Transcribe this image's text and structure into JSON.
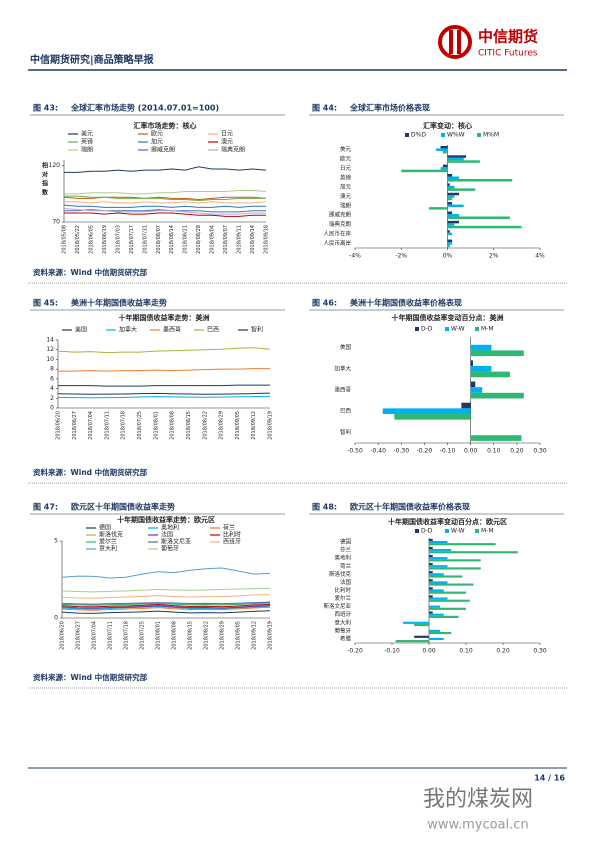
{
  "header": {
    "title": "中信期货研究|商品策略早报",
    "logo_cn": "中信期货",
    "logo_en": "CITIC Futures"
  },
  "sources": [
    "资料来源：Wind  中信期货研究部",
    "资料来源：Wind  中信期货研究部",
    "资料来源：Wind  中信期货研究部"
  ],
  "chart_data": [
    {
      "type": "line",
      "figure": "图 43:",
      "caption": "全球汇率市场走势 (2014.07.01=100)",
      "title": "汇率市场走势：核心",
      "ylabel": "相对指数",
      "categories": [
        "2018/05/08",
        "2018/05/22",
        "2018/06/05",
        "2018/06/19",
        "2018/07/03",
        "2018/07/17",
        "2018/07/31",
        "2018/08/07",
        "2018/08/14",
        "2018/08/21",
        "2018/08/28",
        "2018/09/04",
        "2018/09/07",
        "2018/09/11",
        "2018/09/14",
        "2018/09/18"
      ],
      "ylim": [
        70,
        125
      ],
      "yticks": [
        70,
        120
      ],
      "series": [
        {
          "name": "美元",
          "color": "#1f3864",
          "values": [
            114,
            114,
            115,
            115,
            116,
            115,
            116,
            116,
            117,
            116,
            119,
            117,
            117,
            116,
            117,
            116
          ]
        },
        {
          "name": "欧元",
          "color": "#c55a11",
          "values": [
            92,
            91,
            91,
            92,
            92,
            92,
            91,
            92,
            91,
            91,
            90,
            91,
            92,
            92,
            92,
            91
          ]
        },
        {
          "name": "日元",
          "color": "#f4b183",
          "values": [
            88,
            88,
            87,
            88,
            87,
            87,
            88,
            87,
            87,
            88,
            87,
            88,
            87,
            87,
            87,
            88
          ]
        },
        {
          "name": "英镑",
          "color": "#70ad47",
          "values": [
            93,
            93,
            92,
            92,
            91,
            91,
            91,
            91,
            90,
            90,
            89,
            90,
            90,
            91,
            91,
            91
          ]
        },
        {
          "name": "加元",
          "color": "#2e75b6",
          "values": [
            85,
            84,
            84,
            83,
            83,
            83,
            84,
            84,
            83,
            84,
            83,
            83,
            84,
            83,
            84,
            84
          ]
        },
        {
          "name": "澳元",
          "color": "#c00000",
          "values": [
            78,
            78,
            78,
            77,
            78,
            77,
            77,
            78,
            78,
            77,
            76,
            76,
            75,
            75,
            76,
            76
          ]
        },
        {
          "name": "瑞朗",
          "color": "#a9d18e",
          "values": [
            95,
            95,
            96,
            96,
            96,
            95,
            95,
            96,
            96,
            97,
            97,
            97,
            97,
            98,
            98,
            97
          ]
        },
        {
          "name": "挪威克朗",
          "color": "#4472c4",
          "values": [
            80,
            80,
            81,
            80,
            80,
            80,
            80,
            81,
            80,
            80,
            80,
            79,
            79,
            79,
            80,
            80
          ]
        },
        {
          "name": "瑞典克朗",
          "color": "#b4a7d6",
          "values": [
            82,
            81,
            80,
            80,
            79,
            79,
            79,
            80,
            80,
            79,
            78,
            77,
            77,
            77,
            78,
            78
          ]
        }
      ]
    },
    {
      "type": "hbar",
      "figure": "图 44:",
      "caption": "全球汇率市场价格表现",
      "title": "汇率变动：核心",
      "categories": [
        "美元",
        "欧元",
        "日元",
        "英镑",
        "加元",
        "澳元",
        "瑞朗",
        "挪威克朗",
        "瑞典克朗",
        "人民币在岸",
        "人民币离岸"
      ],
      "xlim": [
        -4,
        4
      ],
      "xticks": [
        {
          "value": -4,
          "label": "-4%"
        },
        {
          "value": -2,
          "label": "-2%"
        },
        {
          "value": 0,
          "label": "0%"
        },
        {
          "value": 2,
          "label": "2%"
        },
        {
          "value": 4,
          "label": "4%"
        }
      ],
      "series": [
        {
          "name": "D%D",
          "color": "#1f3864",
          "values": [
            -0.3,
            0.8,
            -0.2,
            0.2,
            0.1,
            0.5,
            0.2,
            0.2,
            0.5,
            0.1,
            0.2
          ]
        },
        {
          "name": "W%W",
          "color": "#00b0f0",
          "values": [
            -0.5,
            0.7,
            -0.3,
            0.5,
            0.3,
            0.3,
            0.7,
            0.5,
            0.3,
            0.2,
            0.2
          ]
        },
        {
          "name": "M%M",
          "color": "#2eb872",
          "values": [
            -0.2,
            1.4,
            -2.0,
            2.8,
            1.2,
            0.2,
            -0.8,
            2.7,
            3.2,
            0.0,
            0.1
          ]
        }
      ]
    },
    {
      "type": "line",
      "figure": "图 45:",
      "caption": "美洲十年期国债收益率走势",
      "title": "十年期国债收益率走势：美洲",
      "categories": [
        "2018/06/20",
        "2018/06/27",
        "2018/07/04",
        "2018/07/11",
        "2018/07/18",
        "2018/07/25",
        "2018/08/01",
        "2018/08/08",
        "2018/08/15",
        "2018/08/22",
        "2018/08/29",
        "2018/09/05",
        "2018/09/12",
        "2018/09/19"
      ],
      "ylim": [
        0,
        14
      ],
      "yticks": [
        0,
        2,
        4,
        6,
        8,
        10,
        12,
        14
      ],
      "series": [
        {
          "name": "美国",
          "color": "#1f3864",
          "values": [
            2.93,
            2.87,
            2.83,
            2.85,
            2.87,
            2.96,
            3.0,
            2.93,
            2.87,
            2.82,
            2.86,
            2.9,
            2.97,
            3.06
          ]
        },
        {
          "name": "加拿大",
          "color": "#00b0f0",
          "values": [
            2.18,
            2.13,
            2.12,
            2.14,
            2.17,
            2.26,
            2.34,
            2.29,
            2.25,
            2.22,
            2.24,
            2.29,
            2.34,
            2.42
          ]
        },
        {
          "name": "墨西哥",
          "color": "#ed7d31",
          "values": [
            7.6,
            7.6,
            7.7,
            7.6,
            7.7,
            7.7,
            7.8,
            7.7,
            7.8,
            7.9,
            8.0,
            8.0,
            8.1,
            8.1
          ]
        },
        {
          "name": "巴西",
          "color": "#a9b53f",
          "values": [
            11.7,
            11.5,
            11.6,
            11.4,
            11.5,
            11.5,
            11.7,
            11.8,
            11.9,
            12.0,
            12.1,
            12.3,
            12.4,
            12.1
          ]
        },
        {
          "name": "智利",
          "color": "#203864",
          "values": [
            4.6,
            4.6,
            4.6,
            4.5,
            4.5,
            4.5,
            4.6,
            4.6,
            4.6,
            4.6,
            4.6,
            4.7,
            4.7,
            4.7
          ]
        }
      ]
    },
    {
      "type": "hbar",
      "figure": "图 46:",
      "caption": "美洲十年期国债收益率价格表现",
      "title": "十年期国债收益率变动百分点：美洲",
      "categories": [
        "美国",
        "加拿大",
        "墨西哥",
        "巴西",
        "智利"
      ],
      "xlim": [
        -0.5,
        0.3
      ],
      "xticks": [
        {
          "value": -0.5,
          "label": "-0.50"
        },
        {
          "value": -0.4,
          "label": "-0.40"
        },
        {
          "value": -0.3,
          "label": "-0.30"
        },
        {
          "value": -0.2,
          "label": "-0.20"
        },
        {
          "value": -0.1,
          "label": "-0.10"
        },
        {
          "value": 0,
          "label": "0.00"
        },
        {
          "value": 0.1,
          "label": "0.10"
        },
        {
          "value": 0.2,
          "label": "0.20"
        },
        {
          "value": 0.3,
          "label": "0.30"
        }
      ],
      "series": [
        {
          "name": "D-D",
          "color": "#1f3864",
          "values": [
            0.0,
            0.01,
            0.02,
            -0.04,
            0.0
          ]
        },
        {
          "name": "W-W",
          "color": "#00b0f0",
          "values": [
            0.09,
            0.09,
            0.05,
            -0.38,
            0.0
          ]
        },
        {
          "name": "M-M",
          "color": "#2eb872",
          "values": [
            0.23,
            0.17,
            0.23,
            -0.33,
            0.22
          ]
        }
      ]
    },
    {
      "type": "line",
      "figure": "图 47:",
      "caption": "欧元区十年期国债收益率走势",
      "title": "十年期国债收益率走势：欧元区",
      "categories": [
        "2018/06/20",
        "2018/06/27",
        "2018/07/04",
        "2018/07/11",
        "2018/07/18",
        "2018/07/25",
        "2018/08/01",
        "2018/08/08",
        "2018/08/15",
        "2018/08/22",
        "2018/08/29",
        "2018/09/05",
        "2018/09/12",
        "2018/09/19"
      ],
      "ylim": [
        0,
        5
      ],
      "yticks": [
        0,
        5
      ],
      "series": [
        {
          "name": "德国",
          "color": "#1f3864",
          "values": [
            0.38,
            0.32,
            0.3,
            0.35,
            0.37,
            0.4,
            0.45,
            0.38,
            0.33,
            0.35,
            0.33,
            0.38,
            0.43,
            0.47
          ]
        },
        {
          "name": "奥地利",
          "color": "#00b0f0",
          "values": [
            0.65,
            0.6,
            0.58,
            0.62,
            0.66,
            0.7,
            0.75,
            0.68,
            0.62,
            0.62,
            0.6,
            0.66,
            0.71,
            0.76
          ]
        },
        {
          "name": "荷兰",
          "color": "#ed7d31",
          "values": [
            0.58,
            0.53,
            0.5,
            0.55,
            0.58,
            0.62,
            0.67,
            0.6,
            0.55,
            0.56,
            0.54,
            0.59,
            0.65,
            0.7
          ]
        },
        {
          "name": "斯洛伐克",
          "color": "#a9b53f",
          "values": [
            0.88,
            0.85,
            0.84,
            0.86,
            0.88,
            0.9,
            0.93,
            0.9,
            0.87,
            0.88,
            0.87,
            0.89,
            0.92,
            0.96
          ]
        },
        {
          "name": "法国",
          "color": "#7030a0",
          "values": [
            0.72,
            0.66,
            0.64,
            0.68,
            0.7,
            0.74,
            0.8,
            0.72,
            0.67,
            0.68,
            0.65,
            0.7,
            0.76,
            0.8
          ]
        },
        {
          "name": "比利时",
          "color": "#c00000",
          "values": [
            0.8,
            0.74,
            0.72,
            0.76,
            0.78,
            0.82,
            0.88,
            0.8,
            0.75,
            0.76,
            0.73,
            0.78,
            0.84,
            0.88
          ]
        },
        {
          "name": "爱尔兰",
          "color": "#2eb872",
          "values": [
            0.9,
            0.85,
            0.82,
            0.86,
            0.88,
            0.92,
            0.98,
            0.9,
            0.86,
            0.87,
            0.84,
            0.88,
            0.95,
            0.98
          ]
        },
        {
          "name": "斯洛文尼亚",
          "color": "#4472c4",
          "values": [
            0.95,
            0.92,
            0.9,
            0.93,
            0.95,
            0.97,
            1.0,
            0.97,
            0.94,
            0.95,
            0.93,
            0.96,
            1.0,
            1.03
          ]
        },
        {
          "name": "西班牙",
          "color": "#f4b183",
          "values": [
            1.35,
            1.3,
            1.28,
            1.33,
            1.36,
            1.4,
            1.45,
            1.4,
            1.36,
            1.38,
            1.4,
            1.44,
            1.5,
            1.52
          ]
        },
        {
          "name": "意大利",
          "color": "#5b9bd5",
          "values": [
            2.65,
            2.72,
            2.7,
            2.6,
            2.65,
            2.85,
            3.0,
            2.95,
            3.1,
            3.2,
            3.25,
            3.05,
            2.85,
            2.9
          ]
        },
        {
          "name": "葡萄牙",
          "color": "#a9d18e",
          "values": [
            1.75,
            1.72,
            1.7,
            1.73,
            1.76,
            1.8,
            1.86,
            1.82,
            1.8,
            1.82,
            1.85,
            1.88,
            1.9,
            1.93
          ]
        }
      ]
    },
    {
      "type": "hbar",
      "figure": "图 48:",
      "caption": "欧元区十年期国债收益率价格表现",
      "title": "十年期国债收益率变动百分点：欧元区",
      "categories": [
        "德国",
        "芬兰",
        "奥地利",
        "荷兰",
        "斯洛伐克",
        "法国",
        "比利时",
        "爱尔兰",
        "斯洛文尼亚",
        "西班牙",
        "意大利",
        "葡萄牙",
        "希腊"
      ],
      "xlim": [
        -0.2,
        0.3
      ],
      "xticks": [
        {
          "value": -0.2,
          "label": "-0.20"
        },
        {
          "value": -0.1,
          "label": "-0.10"
        },
        {
          "value": 0,
          "label": "0.00"
        },
        {
          "value": 0.1,
          "label": "0.10"
        },
        {
          "value": 0.2,
          "label": "0.20"
        },
        {
          "value": 0.3,
          "label": "0.30"
        }
      ],
      "series": [
        {
          "name": "D-D",
          "color": "#1f3864",
          "values": [
            0.01,
            0.01,
            0.01,
            0.01,
            0.01,
            0.01,
            0.01,
            0.01,
            0.0,
            0.01,
            0.0,
            0.0,
            -0.04
          ]
        },
        {
          "name": "W-W",
          "color": "#00b0f0",
          "values": [
            0.05,
            0.06,
            0.05,
            0.05,
            0.04,
            0.05,
            0.04,
            0.05,
            0.03,
            0.04,
            -0.07,
            0.03,
            0.04
          ]
        },
        {
          "name": "M-M",
          "color": "#2eb872",
          "values": [
            0.18,
            0.24,
            0.14,
            0.14,
            0.09,
            0.12,
            0.1,
            0.11,
            0.1,
            0.08,
            -0.04,
            0.06,
            -0.09
          ]
        }
      ]
    }
  ],
  "footer": {
    "page": "14 / 16",
    "watermark": "我的煤炭网",
    "watermark_url": "www.mycoal.cn"
  }
}
